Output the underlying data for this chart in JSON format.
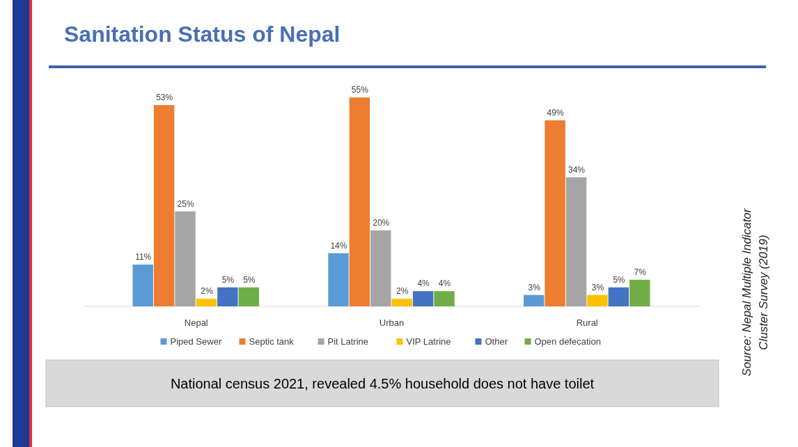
{
  "chart_data": {
    "type": "bar",
    "title": "Sanitation Status of Nepal",
    "categories": [
      "Nepal",
      "Urban",
      "Rural"
    ],
    "series": [
      {
        "name": "Piped Sewer",
        "color": "#5b9bd5",
        "values": [
          11,
          14,
          3
        ],
        "value_labels": [
          "11%",
          "14%",
          "3%"
        ]
      },
      {
        "name": "Septic tank",
        "color": "#ed7d31",
        "values": [
          53,
          55,
          49
        ],
        "value_labels": [
          "53%",
          "55%",
          "49%"
        ]
      },
      {
        "name": "Pit Latrine",
        "color": "#a5a5a5",
        "values": [
          25,
          20,
          34
        ],
        "value_labels": [
          "25%",
          "20%",
          "34%"
        ]
      },
      {
        "name": "VIP Latrine",
        "color": "#ffc000",
        "values": [
          2,
          2,
          3
        ],
        "value_labels": [
          "2%",
          "2%",
          "3%"
        ]
      },
      {
        "name": "Other",
        "color": "#4472c4",
        "values": [
          5,
          4,
          5
        ],
        "value_labels": [
          "5%",
          "4%",
          "5%"
        ]
      },
      {
        "name": "Open defecation",
        "color": "#70ad47",
        "values": [
          5,
          4,
          7
        ],
        "value_labels": [
          "5%",
          "4%",
          "7%"
        ]
      }
    ],
    "legend": "bottom",
    "annotations": [
      "National census 2021, revealed 4.5% household does not have toilet",
      "Source: Nepal Multiple Indicator Cluster Survey (2019)"
    ]
  }
}
